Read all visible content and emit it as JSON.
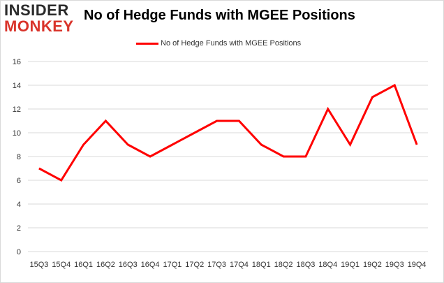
{
  "logo": {
    "top": "INSIDER",
    "bottom": "MONKEY"
  },
  "chart_data": {
    "type": "line",
    "title": "No of Hedge Funds with MGEE Positions",
    "xlabel": "",
    "ylabel": "",
    "categories": [
      "15Q3",
      "15Q4",
      "16Q1",
      "16Q2",
      "16Q3",
      "16Q4",
      "17Q1",
      "17Q2",
      "17Q3",
      "17Q4",
      "18Q1",
      "18Q2",
      "18Q3",
      "18Q4",
      "19Q1",
      "19Q2",
      "19Q3",
      "19Q4"
    ],
    "series": [
      {
        "name": "No of Hedge Funds with MGEE Positions",
        "values": [
          7,
          6,
          9,
          11,
          9,
          8,
          9,
          10,
          11,
          11,
          9,
          8,
          8,
          12,
          9,
          13,
          14,
          9
        ],
        "color": "#ff0000"
      }
    ],
    "ylim": [
      0,
      16
    ],
    "yticks": [
      0,
      2,
      4,
      6,
      8,
      10,
      12,
      14,
      16
    ],
    "grid": true,
    "legend": "top-center"
  }
}
